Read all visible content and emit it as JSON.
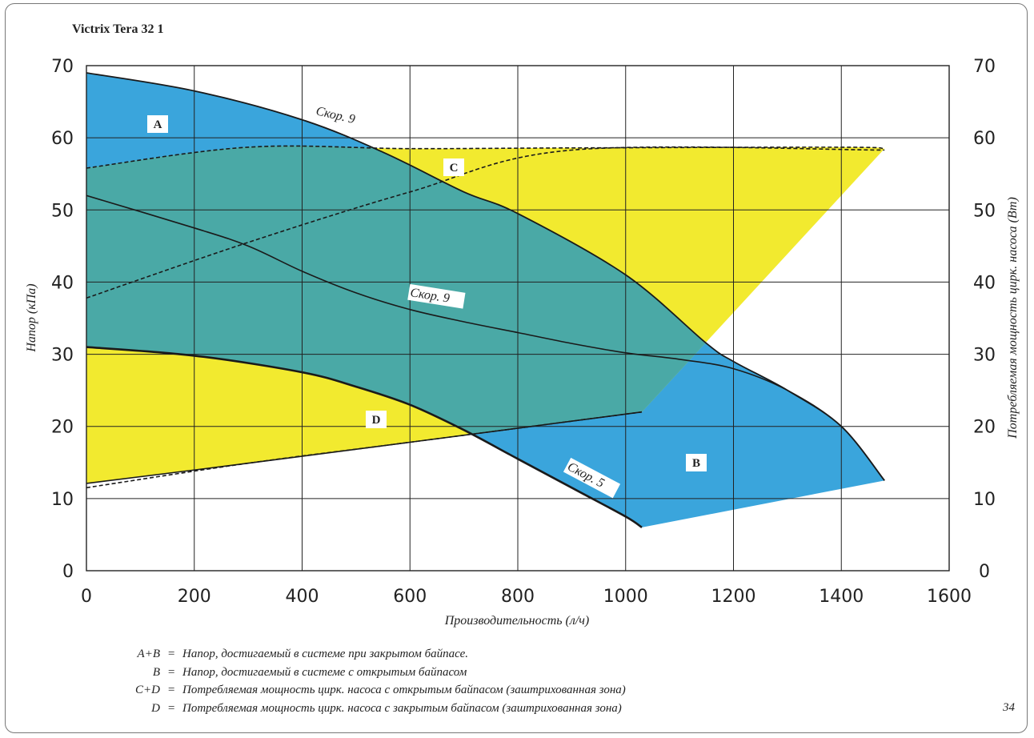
{
  "title": "Victrix Tera 32 1",
  "page_number": "34",
  "legend": [
    {
      "key": "A+B",
      "text": "Напор, достигаемый в системе при закрытом байпасе."
    },
    {
      "key": "B",
      "text": "Напор, достигаемый в системе с открытым байпасом"
    },
    {
      "key": "C+D",
      "text": "Потребляемая мощность цирк. насоса с открытым байпасом (заштрихованная зона)"
    },
    {
      "key": "D",
      "text": "Потребляемая мощность цирк. насоса с закрытым байпасом (заштрихованная зона)"
    }
  ],
  "colors": {
    "blue": "#3aa5dc",
    "yellow": "#f2ea2f",
    "teal": "#4aa9a6",
    "line": "#1a1a1a",
    "grid": "#222222"
  },
  "chart_data": {
    "type": "area",
    "title": "Victrix Tera 32 1",
    "xlabel": "Производительность (л/ч)",
    "ylabel": "Напор (кПа)",
    "y2label": "Потребляемая мощность цирк. насоса (Вт)",
    "xlim": [
      0,
      1600
    ],
    "ylim": [
      0,
      70
    ],
    "y2lim": [
      0,
      70
    ],
    "x_ticks": [
      "0",
      "200",
      "400",
      "600",
      "800",
      "1000",
      "1200",
      "1400",
      "1600"
    ],
    "y_ticks": [
      "0",
      "10",
      "20",
      "30",
      "40",
      "50",
      "60",
      "70"
    ],
    "y2_ticks": [
      "0",
      "10",
      "20",
      "30",
      "40",
      "50",
      "60",
      "70"
    ],
    "grid": true,
    "zone_tags": [
      "A",
      "B",
      "C",
      "D"
    ],
    "curve_labels": [
      "Скор. 9",
      "Скор. 9",
      "Скор. 5"
    ],
    "series": [
      {
        "id": "head_speed9_closed_bypass",
        "label": "Скор. 9",
        "x": [
          0,
          200,
          400,
          550,
          700,
          800,
          1000,
          1150,
          1200,
          1300,
          1400,
          1480
        ],
        "y": [
          69,
          66.5,
          62.5,
          58,
          52.5,
          49.5,
          41,
          31.5,
          29,
          25,
          20,
          12.5
        ]
      },
      {
        "id": "head_speed9_open_bypass",
        "label": "Скор. 9",
        "x": [
          0,
          200,
          300,
          400,
          500,
          600,
          700,
          800,
          900,
          1000,
          1100,
          1200,
          1300,
          1400,
          1480
        ],
        "y": [
          52,
          47.5,
          45,
          41.5,
          38.5,
          36.2,
          34.5,
          33,
          31.5,
          30.2,
          29.3,
          28,
          25,
          20,
          12.5
        ]
      },
      {
        "id": "head_speed5",
        "label": "Скор. 5",
        "x": [
          0,
          200,
          400,
          500,
          600,
          700,
          800,
          900,
          1000,
          1030
        ],
        "y": [
          31,
          29.8,
          27.5,
          25.5,
          23,
          19.5,
          15.5,
          11.5,
          7.5,
          6
        ]
      },
      {
        "id": "power_speed9_open_bypass",
        "x": [
          0,
          300,
          600,
          900,
          1400,
          1480
        ],
        "y": [
          55.8,
          58.7,
          58.5,
          58.6,
          58.7,
          58.5
        ]
      },
      {
        "id": "power_speed9_closed_bypass",
        "x": [
          0,
          300,
          600,
          900,
          1480
        ],
        "y": [
          37.8,
          45.5,
          52.5,
          58.3,
          58.3
        ]
      },
      {
        "id": "power_speed5_open_bypass",
        "x": [
          0,
          300,
          600,
          1030
        ],
        "y": [
          12.1,
          14.9,
          17.8,
          22
        ]
      },
      {
        "id": "power_speed5_closed_bypass",
        "x": [
          0,
          300,
          600,
          1030
        ],
        "y": [
          11.5,
          14.9,
          17.8,
          22
        ]
      }
    ]
  }
}
